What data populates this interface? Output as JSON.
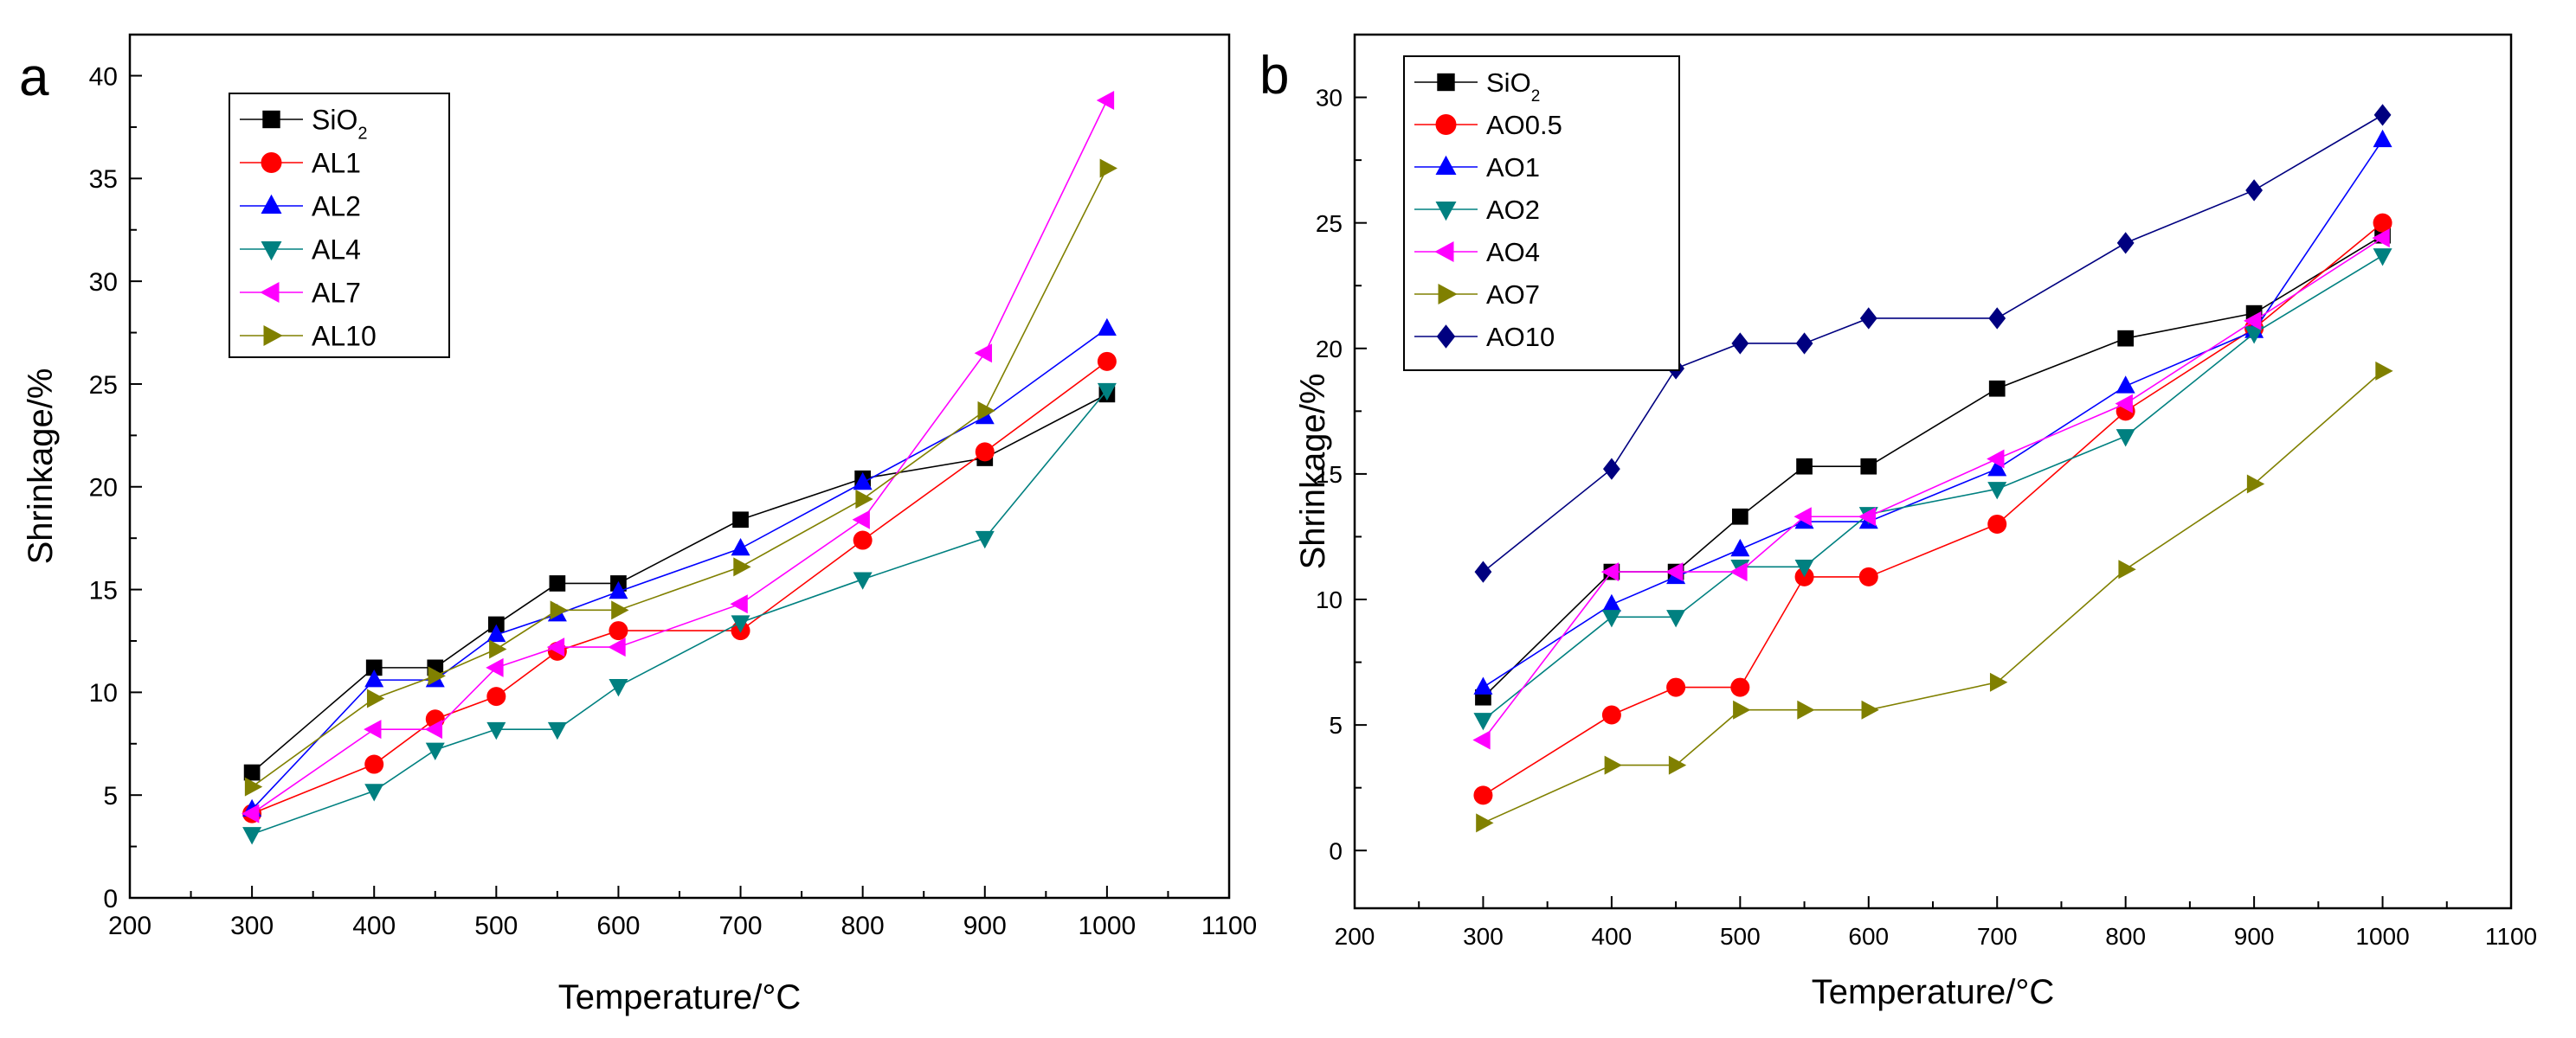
{
  "chart_data": [
    {
      "panel_label": "a",
      "type": "line",
      "title": "",
      "xlabel": "Temperature/°C",
      "ylabel": "Shrinkage/%",
      "xlim": [
        200,
        1100
      ],
      "ylim": [
        0,
        42
      ],
      "xticks": [
        200,
        300,
        400,
        500,
        600,
        700,
        800,
        900,
        1000,
        1100
      ],
      "yticks": [
        0,
        5,
        10,
        15,
        20,
        25,
        30,
        35,
        40
      ],
      "legend_position": "top-left",
      "x": [
        300,
        400,
        450,
        500,
        550,
        600,
        700,
        800,
        900,
        1000
      ],
      "series": [
        {
          "name": "SiO",
          "sub": "2",
          "marker": "square",
          "color": "#000000",
          "values": [
            6.1,
            11.2,
            11.2,
            13.3,
            15.3,
            15.3,
            18.4,
            20.4,
            21.4,
            24.5
          ]
        },
        {
          "name": "AL1",
          "sub": "",
          "marker": "circle",
          "color": "#ff0000",
          "values": [
            4.1,
            6.5,
            8.7,
            9.8,
            12.0,
            13.0,
            13.0,
            17.4,
            21.7,
            26.1
          ]
        },
        {
          "name": "AL2",
          "sub": "",
          "marker": "triangle-up",
          "color": "#0000ff",
          "values": [
            4.3,
            10.6,
            10.6,
            12.8,
            13.8,
            14.9,
            17.0,
            20.2,
            23.4,
            27.7
          ]
        },
        {
          "name": "AL4",
          "sub": "",
          "marker": "triangle-down",
          "color": "#008080",
          "values": [
            3.1,
            5.2,
            7.2,
            8.2,
            8.2,
            10.3,
            13.4,
            15.5,
            17.5,
            24.7
          ]
        },
        {
          "name": "AL7",
          "sub": "",
          "marker": "triangle-left",
          "color": "#ff00ff",
          "values": [
            4.1,
            8.2,
            8.2,
            11.2,
            12.2,
            12.2,
            14.3,
            18.4,
            26.5,
            38.8
          ]
        },
        {
          "name": "AL10",
          "sub": "",
          "marker": "triangle-right",
          "color": "#808000",
          "values": [
            5.4,
            9.7,
            10.8,
            12.1,
            14.0,
            14.0,
            16.1,
            19.4,
            23.7,
            35.5
          ]
        }
      ]
    },
    {
      "panel_label": "b",
      "type": "line",
      "title": "",
      "xlabel": "Temperature/°C",
      "ylabel": "Shrinkage/%",
      "xlim": [
        200,
        1100
      ],
      "ylim": [
        -2.3,
        32.5
      ],
      "xticks": [
        200,
        300,
        400,
        500,
        600,
        700,
        800,
        900,
        1000,
        1100
      ],
      "yticks": [
        0,
        5,
        10,
        15,
        20,
        25,
        30
      ],
      "legend_position": "top-left",
      "x": [
        300,
        400,
        450,
        500,
        550,
        600,
        700,
        800,
        900,
        1000
      ],
      "series": [
        {
          "name": "SiO",
          "sub": "2",
          "marker": "square",
          "color": "#000000",
          "values": [
            6.1,
            11.1,
            11.1,
            13.3,
            15.3,
            15.3,
            18.4,
            20.4,
            21.4,
            24.5
          ]
        },
        {
          "name": "AO0.5",
          "sub": "",
          "marker": "circle",
          "color": "#ff0000",
          "values": [
            2.2,
            5.4,
            6.5,
            6.5,
            10.9,
            10.9,
            13.0,
            17.5,
            20.8,
            25.0
          ]
        },
        {
          "name": "AO1",
          "sub": "",
          "marker": "triangle-up",
          "color": "#0000ff",
          "values": [
            6.5,
            9.8,
            10.9,
            12.0,
            13.1,
            13.1,
            15.2,
            18.5,
            20.7,
            28.3
          ]
        },
        {
          "name": "AO2",
          "sub": "",
          "marker": "triangle-down",
          "color": "#008080",
          "values": [
            5.2,
            9.3,
            9.3,
            11.3,
            11.3,
            13.4,
            14.4,
            16.5,
            20.6,
            23.7
          ]
        },
        {
          "name": "AO4",
          "sub": "",
          "marker": "triangle-left",
          "color": "#ff00ff",
          "values": [
            4.4,
            11.1,
            11.1,
            11.1,
            13.3,
            13.3,
            15.6,
            17.8,
            21.1,
            24.4
          ]
        },
        {
          "name": "AO7",
          "sub": "",
          "marker": "triangle-right",
          "color": "#808000",
          "values": [
            1.1,
            3.4,
            3.4,
            5.6,
            5.6,
            5.6,
            6.7,
            11.2,
            14.6,
            19.1
          ]
        },
        {
          "name": "AO10",
          "sub": "",
          "marker": "diamond",
          "color": "#000080",
          "values": [
            11.1,
            15.2,
            19.2,
            20.2,
            20.2,
            21.2,
            21.2,
            24.2,
            26.3,
            29.3
          ]
        }
      ]
    }
  ]
}
